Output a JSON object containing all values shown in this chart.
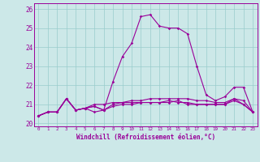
{
  "xlabel": "Windchill (Refroidissement éolien,°C)",
  "xlim": [
    -0.5,
    23.5
  ],
  "ylim": [
    19.85,
    26.3
  ],
  "yticks": [
    20,
    21,
    22,
    23,
    24,
    25,
    26
  ],
  "xticks": [
    0,
    1,
    2,
    3,
    4,
    5,
    6,
    7,
    8,
    9,
    10,
    11,
    12,
    13,
    14,
    15,
    16,
    17,
    18,
    19,
    20,
    21,
    22,
    23
  ],
  "background_color": "#cce8e8",
  "line_color": "#990099",
  "grid_color": "#99cccc",
  "series": [
    [
      20.4,
      20.6,
      20.6,
      21.3,
      20.7,
      20.8,
      20.6,
      20.7,
      22.2,
      23.5,
      24.2,
      25.6,
      25.7,
      25.1,
      25.0,
      25.0,
      24.7,
      23.0,
      21.5,
      21.2,
      21.4,
      21.9,
      21.9,
      20.6
    ],
    [
      20.4,
      20.6,
      20.6,
      21.3,
      20.7,
      20.8,
      21.0,
      21.0,
      21.1,
      21.1,
      21.1,
      21.1,
      21.1,
      21.1,
      21.1,
      21.2,
      21.0,
      21.0,
      21.0,
      21.0,
      21.0,
      21.3,
      21.0,
      20.6
    ],
    [
      20.4,
      20.6,
      20.6,
      21.3,
      20.7,
      20.8,
      20.9,
      20.7,
      21.0,
      21.1,
      21.2,
      21.2,
      21.3,
      21.3,
      21.3,
      21.3,
      21.3,
      21.2,
      21.2,
      21.1,
      21.1,
      21.3,
      21.2,
      20.6
    ],
    [
      20.4,
      20.6,
      20.6,
      21.3,
      20.7,
      20.8,
      20.9,
      20.7,
      20.9,
      21.0,
      21.0,
      21.1,
      21.1,
      21.1,
      21.2,
      21.1,
      21.1,
      21.0,
      21.0,
      21.0,
      21.0,
      21.2,
      21.0,
      20.6
    ]
  ]
}
